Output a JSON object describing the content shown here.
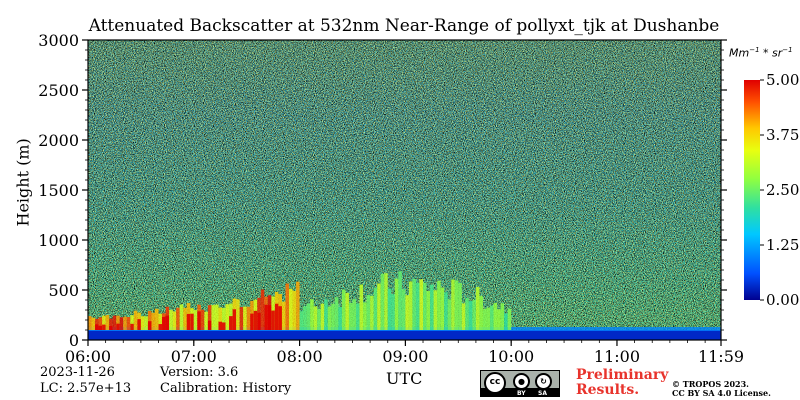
{
  "chart_data": {
    "type": "heatmap",
    "title": "Attenuated Backscatter at 532nm Near-Range of pollyxt_tjk at Dushanbe",
    "xlabel": "UTC",
    "ylabel": "Height (m)",
    "x_ticks": [
      "06:00",
      "07:00",
      "08:00",
      "09:00",
      "10:00",
      "11:00",
      "11:59"
    ],
    "x_range": [
      "06:00",
      "11:59"
    ],
    "y_ticks": [
      0,
      500,
      1000,
      1500,
      2000,
      2500,
      3000
    ],
    "ylim": [
      0,
      3000
    ],
    "colorbar": {
      "label": "Mm^-1 * sr^-1",
      "ticks": [
        "0.00",
        "1.25",
        "2.50",
        "3.75",
        "5.00"
      ],
      "range": [
        0,
        5
      ],
      "colormap": "jet"
    },
    "features": [
      {
        "description": "low-signal band near ground",
        "height_range": [
          0,
          100
        ],
        "value": 0.3
      },
      {
        "description": "strong aerosol layer",
        "time_range": [
          "06:00",
          "08:00"
        ],
        "height_range": [
          100,
          600
        ],
        "value": 4.5
      },
      {
        "description": "moderate aerosol plumes",
        "time_range": [
          "08:00",
          "10:00"
        ],
        "height_range": [
          100,
          700
        ],
        "value": 3.0
      },
      {
        "description": "noisy background aloft",
        "height_range": [
          1000,
          3000
        ],
        "value": 1.5
      }
    ],
    "grid": false
  },
  "meta": {
    "date": "2023-11-26",
    "lc": "LC: 2.57e+13",
    "version": "Version: 3.6",
    "calibration": "Calibration: History"
  },
  "footer": {
    "prelim_line1": "Preliminary",
    "prelim_line2": "Results.",
    "copyright_line1": "© TROPOS 2023.",
    "copyright_line2": "CC BY SA 4.0 License.",
    "cc_by": "BY",
    "cc_sa": "SA",
    "cc_main": "cc"
  },
  "colors": {
    "jet_low": "#0000ff",
    "jet_mid": "#00ff80",
    "jet_high": "#ff0000"
  }
}
